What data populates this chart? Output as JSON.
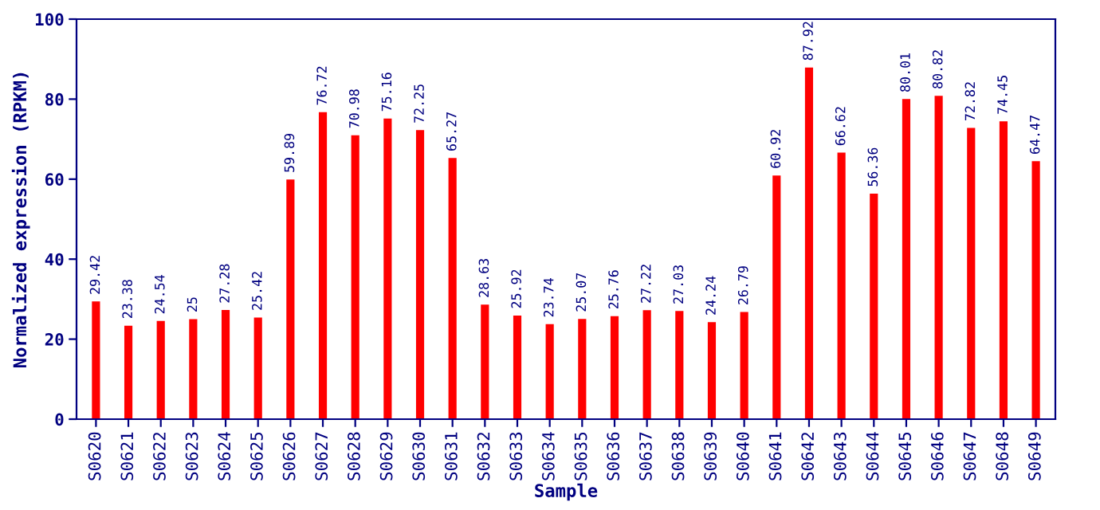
{
  "chart_data": {
    "type": "bar",
    "xlabel": "Sample",
    "ylabel": "Normalized expression (RPKM)",
    "categories": [
      "S0620",
      "S0621",
      "S0622",
      "S0623",
      "S0624",
      "S0625",
      "S0626",
      "S0627",
      "S0628",
      "S0629",
      "S0630",
      "S0631",
      "S0632",
      "S0633",
      "S0634",
      "S0635",
      "S0636",
      "S0637",
      "S0638",
      "S0639",
      "S0640",
      "S0641",
      "S0642",
      "S0643",
      "S0644",
      "S0645",
      "S0646",
      "S0647",
      "S0648",
      "S0649"
    ],
    "values": [
      29.42,
      23.38,
      24.54,
      25,
      27.28,
      25.42,
      59.89,
      76.72,
      70.98,
      75.16,
      72.25,
      65.27,
      28.63,
      25.92,
      23.74,
      25.07,
      25.76,
      27.22,
      27.03,
      24.24,
      26.79,
      60.92,
      87.92,
      66.62,
      56.36,
      80.01,
      80.82,
      72.82,
      74.45,
      64.47
    ],
    "color": "#ff0000",
    "ylim": [
      0,
      100
    ],
    "yticks": [
      0,
      20,
      40,
      60,
      80,
      100
    ],
    "data_labels": true,
    "grid": false
  }
}
